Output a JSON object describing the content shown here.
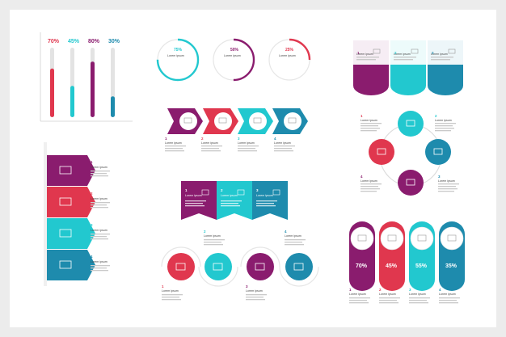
{
  "colors": {
    "purple": "#8a1c6e",
    "red": "#e0374e",
    "cyan": "#22c8cf",
    "blue": "#1e8bad"
  },
  "bars": {
    "values": [
      70,
      45,
      80,
      30
    ],
    "labels": [
      "70%",
      "45%",
      "80%",
      "30%"
    ]
  },
  "rings": {
    "values": [
      75,
      50,
      25
    ],
    "labels": [
      "75%",
      "50%",
      "25%"
    ],
    "caption": "Lorem ipsum"
  },
  "caption": "Lorem ipsum",
  "steps": [
    "1",
    "2",
    "3",
    "4"
  ],
  "pills": {
    "labels": [
      "70%",
      "45%",
      "55%",
      "35%"
    ]
  },
  "icons": [
    "monitor-icon",
    "chat-icon",
    "laptop-icon",
    "browser-icon"
  ]
}
